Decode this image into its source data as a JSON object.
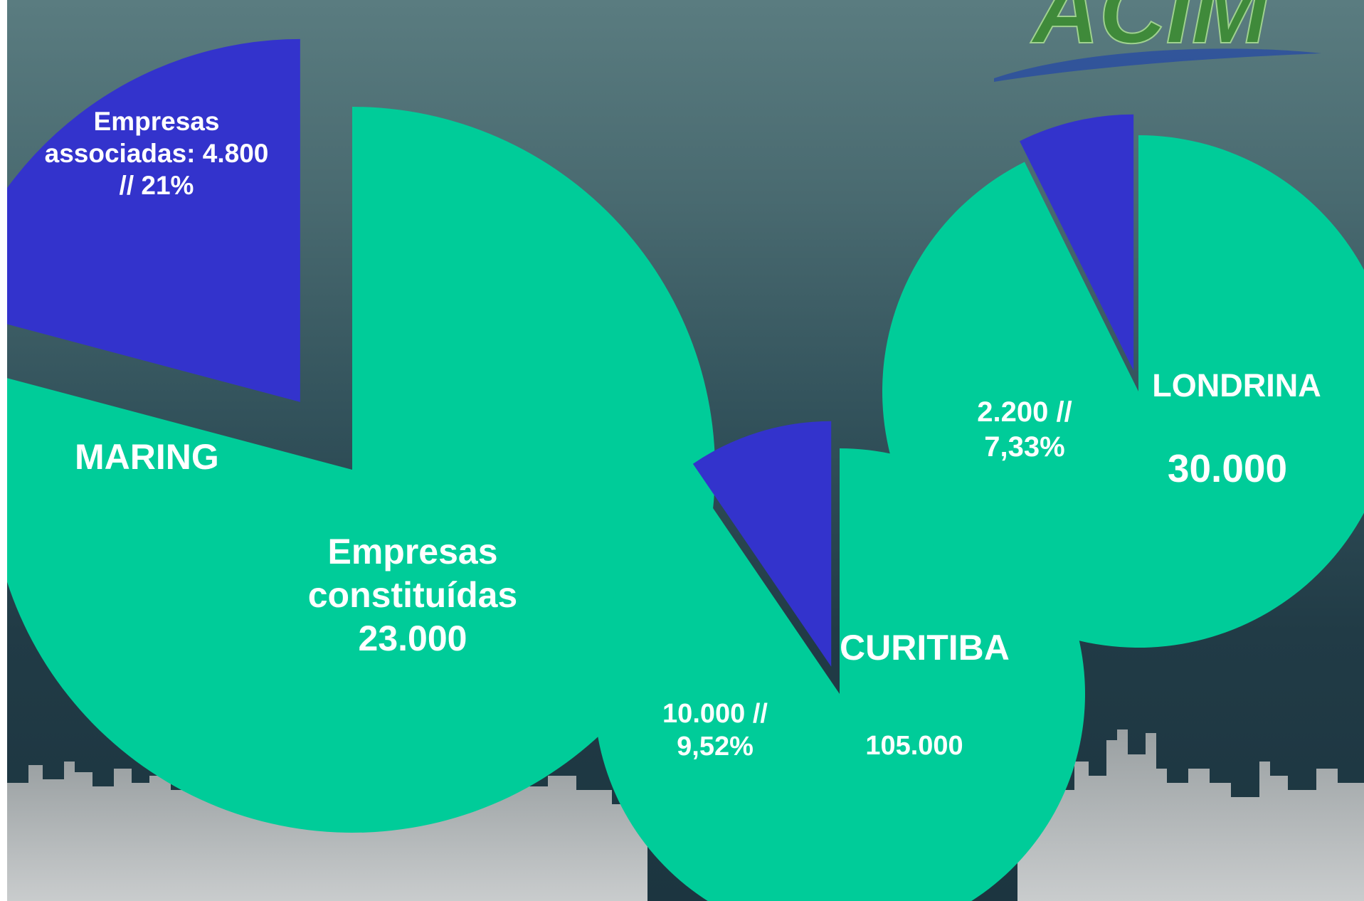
{
  "colors": {
    "constituidas": "#00cc99",
    "associadas": "#3333cc",
    "logo_text": "#3f8a3a",
    "logo_swoosh": "#2b4fa0"
  },
  "logo": {
    "text": "ACIM"
  },
  "chart_data": [
    {
      "type": "pie",
      "title": "MARING",
      "total_label": "Empresas\nconstituídas\n23.000",
      "total": 23000,
      "slices": [
        {
          "name": "Empresas associadas",
          "value": 4800,
          "percent": 21,
          "exploded": true,
          "label": "Empresas\nassociadas: 4.800\n//  21%"
        },
        {
          "name": "Empresas constituídas",
          "value": 18200,
          "percent": 79
        }
      ]
    },
    {
      "type": "pie",
      "title": "CURITIBA",
      "total_label": "105.000",
      "total": 105000,
      "slices": [
        {
          "name": "Empresas associadas",
          "value": 10000,
          "percent": 9.52,
          "exploded": true,
          "label": "10.000  //\n9,52%"
        },
        {
          "name": "Empresas constituídas",
          "value": 95000,
          "percent": 90.48
        }
      ]
    },
    {
      "type": "pie",
      "title": "LONDRINA",
      "total_label": "30.000",
      "total": 30000,
      "slices": [
        {
          "name": "Empresas associadas",
          "value": 2200,
          "percent": 7.33,
          "exploded": true,
          "label": "2.200  //\n7,33%"
        },
        {
          "name": "Empresas constituídas",
          "value": 27800,
          "percent": 92.67
        }
      ]
    }
  ]
}
